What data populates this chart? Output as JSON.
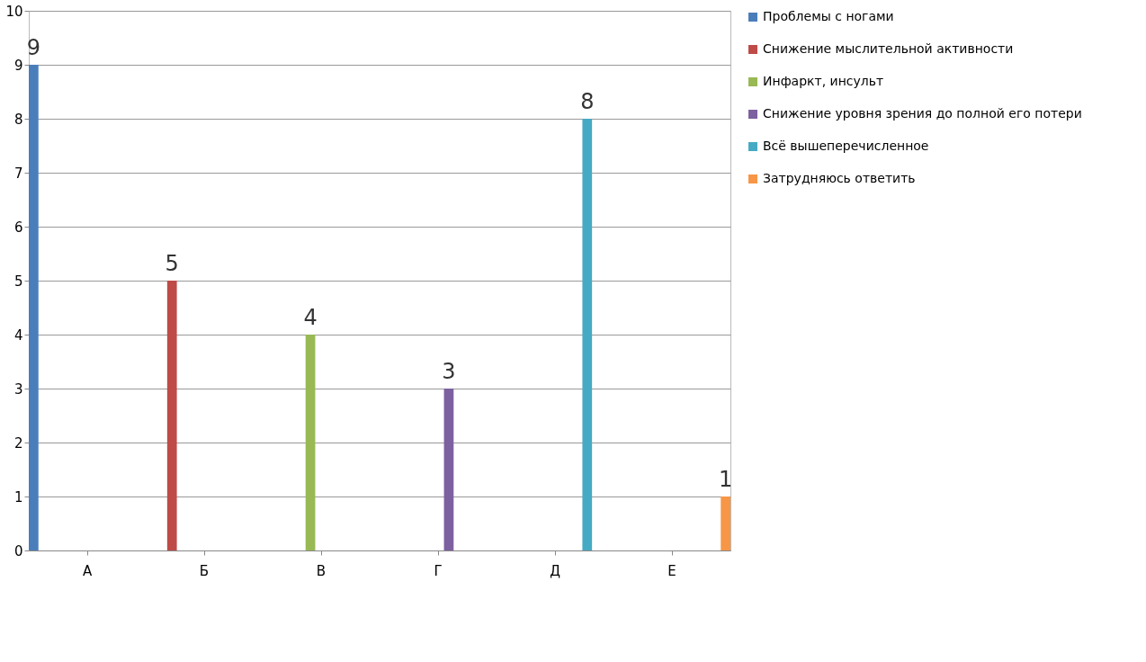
{
  "chart_data": {
    "type": "bar",
    "categories": [
      "А",
      "Б",
      "В",
      "Г",
      "Д",
      "Е"
    ],
    "series": [
      {
        "name": "Проблемы с ногами",
        "color": "#4a7ebb",
        "values": [
          9,
          null,
          null,
          null,
          null,
          null
        ]
      },
      {
        "name": "Снижение мыслительной активности",
        "color": "#be4b48",
        "values": [
          null,
          5,
          null,
          null,
          null,
          null
        ]
      },
      {
        "name": "Инфаркт, инсульт",
        "color": "#98b954",
        "values": [
          null,
          null,
          4,
          null,
          null,
          null
        ]
      },
      {
        "name": "Снижение уровня зрения до полной его потери",
        "color": "#7d60a0",
        "values": [
          null,
          null,
          null,
          3,
          null,
          null
        ]
      },
      {
        "name": "Всё вышеперечисленное",
        "color": "#46aac5",
        "values": [
          null,
          null,
          null,
          null,
          8,
          null
        ]
      },
      {
        "name": "Затрудняюсь ответить",
        "color": "#f79646",
        "values": [
          null,
          null,
          null,
          null,
          null,
          1
        ]
      }
    ],
    "ylim": [
      0,
      10
    ],
    "yticks": [
      0,
      1,
      2,
      3,
      4,
      5,
      6,
      7,
      8,
      9,
      10
    ],
    "grid": "y",
    "legend": "right",
    "data_labels": true
  }
}
